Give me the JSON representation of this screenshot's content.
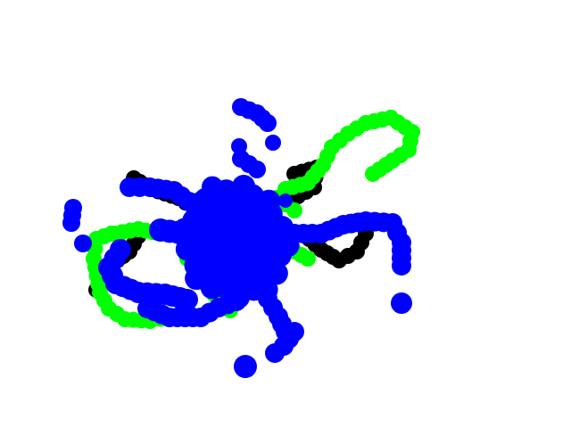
{
  "canvas": {
    "background": "#ffffff"
  },
  "colors": {
    "black": "#000000",
    "green": "#00ff00",
    "blue": "#0000ff"
  },
  "trails": {
    "black": {
      "label": "",
      "color": "#000000"
    },
    "green": {
      "label": "",
      "color": "#00ff00"
    },
    "blue": {
      "label": "",
      "color": "#0000ff"
    }
  }
}
